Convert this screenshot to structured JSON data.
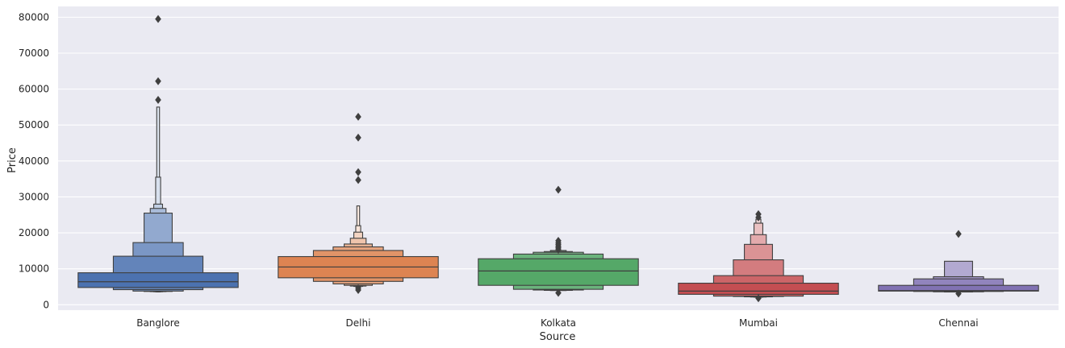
{
  "chart_data": {
    "type": "boxen",
    "title": "",
    "xlabel": "Source",
    "ylabel": "Price",
    "ylim": [
      -1500,
      83000
    ],
    "grid": true,
    "yticks": [
      0,
      10000,
      20000,
      30000,
      40000,
      50000,
      60000,
      70000,
      80000
    ],
    "yticklabels": [
      "0",
      "10000",
      "20000",
      "30000",
      "40000",
      "50000",
      "60000",
      "70000",
      "80000"
    ],
    "categories": [
      "Banglore",
      "Delhi",
      "Kolkata",
      "Mumbai",
      "Chennai"
    ],
    "colors": [
      "#4c72b0",
      "#dd8452",
      "#55a868",
      "#c44e52",
      "#8172b3"
    ],
    "series": [
      {
        "category": "Banglore",
        "median": 6400,
        "levels": [
          [
            4800,
            8900
          ],
          [
            4200,
            13500
          ],
          [
            3800,
            17300
          ],
          [
            3700,
            25500
          ],
          [
            3650,
            26800
          ],
          [
            3620,
            28000
          ],
          [
            3600,
            35500
          ],
          [
            3590,
            55000
          ]
        ],
        "outliers": [
          57000,
          62200,
          79500
        ]
      },
      {
        "category": "Delhi",
        "median": 10500,
        "levels": [
          [
            7500,
            13400
          ],
          [
            6500,
            15100
          ],
          [
            5800,
            16100
          ],
          [
            5400,
            16900
          ],
          [
            5200,
            18500
          ],
          [
            5100,
            20200
          ],
          [
            5000,
            22000
          ],
          [
            4950,
            27500
          ]
        ],
        "outliers": [
          4100,
          4600,
          34700,
          36900,
          46500,
          52300
        ]
      },
      {
        "category": "Kolkata",
        "median": 9400,
        "levels": [
          [
            5400,
            12800
          ],
          [
            4300,
            14100
          ],
          [
            4100,
            14600
          ],
          [
            4000,
            14800
          ],
          [
            3950,
            15100
          ]
        ],
        "outliers": [
          3300,
          15300,
          15800,
          16200,
          16700,
          17200,
          17800,
          32000
        ]
      },
      {
        "category": "Mumbai",
        "median": 3800,
        "levels": [
          [
            2900,
            6000
          ],
          [
            2400,
            8100
          ],
          [
            2300,
            12500
          ],
          [
            2200,
            16800
          ],
          [
            2150,
            19500
          ],
          [
            2100,
            22700
          ],
          [
            2050,
            23800
          ]
        ],
        "outliers": [
          1800,
          24300,
          25200
        ]
      },
      {
        "category": "Chennai",
        "median": 3950,
        "levels": [
          [
            3800,
            5400
          ],
          [
            3700,
            7200
          ],
          [
            3600,
            7800
          ],
          [
            3550,
            12100
          ]
        ],
        "outliers": [
          3100,
          19700
        ]
      }
    ]
  }
}
